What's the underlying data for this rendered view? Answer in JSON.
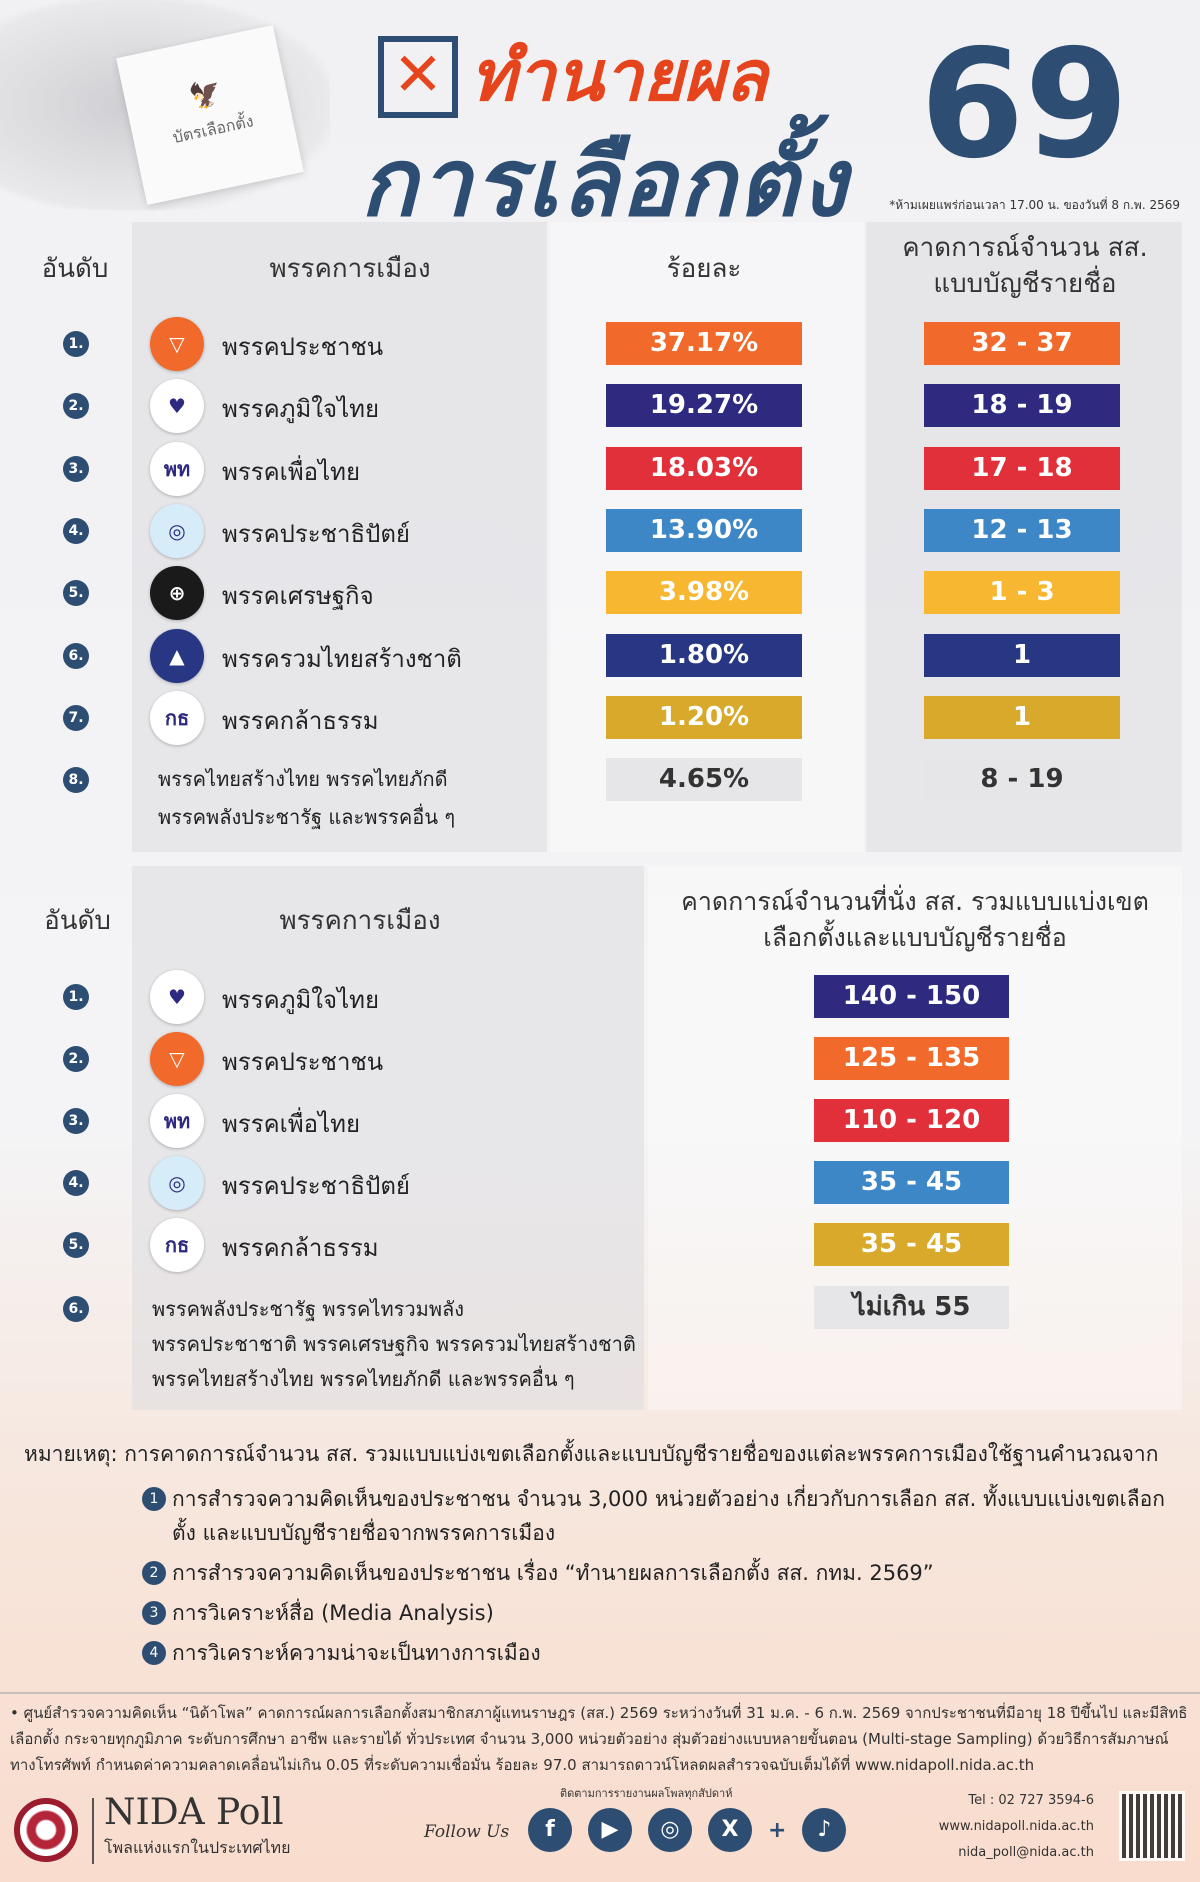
{
  "header": {
    "title_line1": "ทำนายผล",
    "title_line2": "การเลือกตั้ง",
    "title_number": "69",
    "ballot_text": "บัตรเลือกตั้ง",
    "embargo_note": "*ห้ามเผยแพร่ก่อนเวลา 17.00 น. ของวันที่ 8 ก.พ. 2569"
  },
  "table1": {
    "headers": {
      "rank": "อันดับ",
      "party": "พรรคการเมือง",
      "percent": "ร้อยละ",
      "seats": "คาดการณ์จำนวน สส. แบบบัญชีรายชื่อ"
    },
    "rows": [
      {
        "rank": "1.",
        "party": "พรรคประชาชน",
        "percent": "37.17%",
        "seats": "32 - 37",
        "color": "#f26a2b",
        "logo": "▽",
        "logo_bg": "#f26a2b"
      },
      {
        "rank": "2.",
        "party": "พรรคภูมิใจไทย",
        "percent": "19.27%",
        "seats": "18 - 19",
        "color": "#2e2a80",
        "logo": "♥",
        "logo_bg": "#ffffff"
      },
      {
        "rank": "3.",
        "party": "พรรคเพื่อไทย",
        "percent": "18.03%",
        "seats": "17 - 18",
        "color": "#e2303b",
        "logo": "พท",
        "logo_bg": "#ffffff"
      },
      {
        "rank": "4.",
        "party": "พรรคประชาธิปัตย์",
        "percent": "13.90%",
        "seats": "12 - 13",
        "color": "#3d87c7",
        "logo": "◎",
        "logo_bg": "#d6ecf8"
      },
      {
        "rank": "5.",
        "party": "พรรคเศรษฐกิจ",
        "percent": "3.98%",
        "seats": "1 - 3",
        "color": "#f8b731",
        "logo": "⊕",
        "logo_bg": "#1a1a1a"
      },
      {
        "rank": "6.",
        "party": "พรรครวมไทยสร้างชาติ",
        "percent": "1.80%",
        "seats": "1",
        "color": "#283784",
        "logo": "▲",
        "logo_bg": "#283784"
      },
      {
        "rank": "7.",
        "party": "พรรคกล้าธรรม",
        "percent": "1.20%",
        "seats": "1",
        "color": "#d8a92b",
        "logo": "กธ",
        "logo_bg": "#ffffff"
      }
    ],
    "other": {
      "rank": "8.",
      "party_line1": "พรรคไทยสร้างไทย พรรคไทยภักดี",
      "party_line2": "พรรคพลังประชารัฐ และพรรคอื่น ๆ",
      "percent": "4.65%",
      "seats": "8 - 19",
      "color": "#e6e6e8"
    }
  },
  "table2": {
    "headers": {
      "rank": "อันดับ",
      "party": "พรรคการเมือง",
      "seats": "คาดการณ์จำนวนที่นั่ง สส. รวมแบบแบ่งเขตเลือกตั้งและแบบบัญชีรายชื่อ"
    },
    "rows": [
      {
        "rank": "1.",
        "party": "พรรคภูมิใจไทย",
        "seats": "140 - 150",
        "color": "#2e2a80",
        "logo": "♥",
        "logo_bg": "#ffffff"
      },
      {
        "rank": "2.",
        "party": "พรรคประชาชน",
        "seats": "125 - 135",
        "color": "#f26a2b",
        "logo": "▽",
        "logo_bg": "#f26a2b"
      },
      {
        "rank": "3.",
        "party": "พรรคเพื่อไทย",
        "seats": "110 - 120",
        "color": "#e2303b",
        "logo": "พท",
        "logo_bg": "#ffffff"
      },
      {
        "rank": "4.",
        "party": "พรรคประชาธิปัตย์",
        "seats": "35 - 45",
        "color": "#3d87c7",
        "logo": "◎",
        "logo_bg": "#d6ecf8"
      },
      {
        "rank": "5.",
        "party": "พรรคกล้าธรรม",
        "seats": "35 - 45",
        "color": "#d8a92b",
        "logo": "กธ",
        "logo_bg": "#ffffff"
      }
    ],
    "other": {
      "rank": "6.",
      "party_line1": "พรรคพลังประชารัฐ พรรคไทรวมพลัง",
      "party_line2": "พรรคประชาชาติ พรรคเศรษฐกิจ พรรครวมไทยสร้างชาติ",
      "party_line3": "พรรคไทยสร้างไทย พรรคไทยภักดี และพรรคอื่น ๆ",
      "seats": "ไม่เกิน 55",
      "color": "#e6e6e8"
    }
  },
  "notes": {
    "label": "หมายเหตุ:",
    "intro": "การคาดการณ์จำนวน สส. รวมแบบแบ่งเขตเลือกตั้งและแบบบัญชีรายชื่อของแต่ละพรรคการเมืองใช้ฐานคำนวณจาก",
    "items": [
      {
        "num": "1",
        "text": "การสำรวจความคิดเห็นของประชาชน จำนวน 3,000 หน่วยตัวอย่าง เกี่ยวกับการเลือก สส. ทั้งแบบแบ่งเขตเลือกตั้ง และแบบบัญชีรายชื่อจากพรรคการเมือง"
      },
      {
        "num": "2",
        "text": "การสำรวจความคิดเห็นของประชาชน เรื่อง “ทำนายผลการเลือกตั้ง สส. กทม. 2569”"
      },
      {
        "num": "3",
        "text": "การวิเคราะห์สื่อ (Media Analysis)"
      },
      {
        "num": "4",
        "text": "การวิเคราะห์ความน่าจะเป็นทางการเมือง"
      }
    ]
  },
  "footer": {
    "methodology": "• ศูนย์สำรวจความคิดเห็น “นิด้าโพล” คาดการณ์ผลการเลือกตั้งสมาชิกสภาผู้แทนราษฎร (สส.) 2569 ระหว่างวันที่ 31 ม.ค. - 6 ก.พ. 2569 จากประชาชนที่มีอายุ 18 ปีขึ้นไป และมีสิทธิเลือกตั้ง กระจายทุกภูมิภาค ระดับการศึกษา อาชีพ และรายได้ ทั่วประเทศ จำนวน 3,000 หน่วยตัวอย่าง สุ่มตัวอย่างแบบหลายขั้นตอน (Multi-stage Sampling) ด้วยวิธีการสัมภาษณ์ทางโทรศัพท์ กำหนดค่าความคลาดเคลื่อนไม่เกิน 0.05 ที่ระดับความเชื่อมั่น ร้อยละ 97.0 สามารถดาวน์โหลดผลสำรวจฉบับเต็มได้ที่ www.nidapoll.nida.ac.th",
    "brand": "NIDA Poll",
    "tagline": "โพลแห่งแรกในประเทศไทย",
    "follow_caption": "ติดตามการรายงานผลโพลทุกสัปดาห์",
    "follow_us": "Follow Us",
    "social": [
      {
        "icon": "facebook-icon",
        "glyph": "f"
      },
      {
        "icon": "youtube-icon",
        "glyph": "▶"
      },
      {
        "icon": "instagram-icon",
        "glyph": "◎"
      },
      {
        "icon": "x-icon",
        "glyph": "X"
      },
      {
        "icon": "tiktok-icon",
        "glyph": "♪"
      }
    ],
    "plus": "+",
    "tel": "Tel : 02 727 3594-6",
    "website": "www.nidapoll.nida.ac.th",
    "email": "nida_poll@nida.ac.th"
  }
}
